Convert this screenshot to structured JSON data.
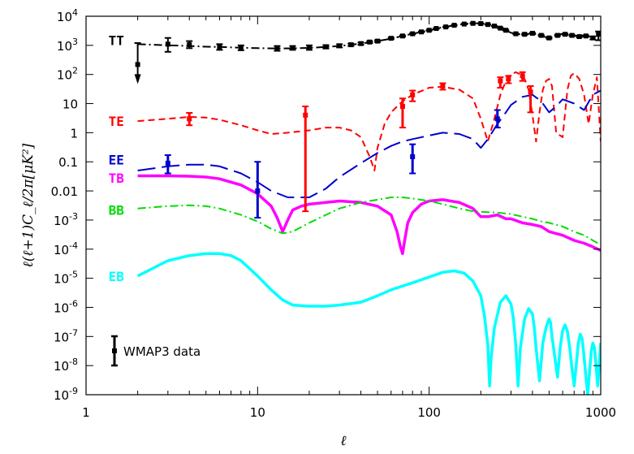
{
  "chart_data": {
    "type": "line",
    "title": "",
    "xlabel": "ℓ",
    "ylabel": "ℓ(ℓ+1)C_ℓ/2π[μK²]",
    "xscale": "log",
    "yscale": "log",
    "xlim": [
      1,
      1000
    ],
    "ylim": [
      1e-09,
      10000
    ],
    "grid": false,
    "x_ticks": [
      {
        "value": 1,
        "label": "1"
      },
      {
        "value": 10,
        "label": "10"
      },
      {
        "value": 100,
        "label": "100"
      },
      {
        "value": 1000,
        "label": "1000"
      }
    ],
    "y_ticks": [
      {
        "value": 10000,
        "base": "10",
        "exp": "4"
      },
      {
        "value": 1000,
        "base": "10",
        "exp": "3"
      },
      {
        "value": 100,
        "base": "10",
        "exp": "2"
      },
      {
        "value": 10,
        "base": "10",
        "exp": ""
      },
      {
        "value": 1,
        "base": "1",
        "exp": ""
      },
      {
        "value": 0.1,
        "base": "0.1",
        "exp": ""
      },
      {
        "value": 0.01,
        "base": "0.01",
        "exp": ""
      },
      {
        "value": 0.001,
        "base": "10",
        "exp": "-3"
      },
      {
        "value": 0.0001,
        "base": "10",
        "exp": "-4"
      },
      {
        "value": 1e-05,
        "base": "10",
        "exp": "-5"
      },
      {
        "value": 1e-06,
        "base": "10",
        "exp": "-6"
      },
      {
        "value": 1e-07,
        "base": "10",
        "exp": "-7"
      },
      {
        "value": 1e-08,
        "base": "10",
        "exp": "-8"
      },
      {
        "value": 1e-09,
        "base": "10",
        "exp": "-9"
      }
    ],
    "series": [
      {
        "name": "TT",
        "color": "#000000",
        "dash": "10,4,2,4",
        "width": 2,
        "label_pos": {
          "x": 1.5,
          "y": 1500
        },
        "x": [
          2,
          3,
          4,
          5,
          6,
          8,
          10,
          13,
          16,
          20,
          25,
          30,
          35,
          40,
          50,
          60,
          70,
          80,
          100,
          120,
          150,
          180,
          200,
          220,
          250,
          280,
          300,
          350,
          400,
          450,
          500,
          550,
          600,
          700,
          800,
          900,
          1000
        ],
        "y": [
          1100,
          1000,
          950,
          900,
          880,
          830,
          800,
          780,
          790,
          820,
          880,
          950,
          1050,
          1150,
          1400,
          1700,
          2100,
          2500,
          3300,
          4200,
          5200,
          5800,
          5700,
          5200,
          4300,
          3300,
          2700,
          2300,
          2600,
          2100,
          1800,
          2300,
          2500,
          2100,
          2200,
          1900,
          1600
        ]
      },
      {
        "name": "TE",
        "color": "#ff0000",
        "dash": "8,5",
        "width": 2,
        "label_pos": {
          "x": 1.5,
          "y": 2.5
        },
        "x": [
          2,
          3,
          4,
          5,
          6,
          8,
          10,
          12,
          15,
          20,
          25,
          30,
          35,
          40,
          45,
          48,
          50,
          55,
          60,
          70,
          80,
          100,
          120,
          150,
          180,
          200,
          220,
          240,
          260,
          280,
          300,
          320,
          340,
          360,
          380,
          400,
          420,
          440,
          460,
          480,
          500,
          520,
          550,
          600,
          640,
          670,
          700,
          750,
          800,
          850,
          900,
          950,
          1000
        ],
        "y": [
          2.5,
          3,
          3.5,
          3.3,
          2.8,
          1.8,
          1.2,
          0.9,
          1,
          1.2,
          1.5,
          1.5,
          1.2,
          0.7,
          0.15,
          0.05,
          0.3,
          2,
          5,
          12,
          20,
          35,
          38,
          30,
          15,
          3,
          0.5,
          3,
          20,
          60,
          100,
          120,
          100,
          70,
          30,
          4,
          0.5,
          5,
          30,
          60,
          70,
          40,
          1,
          0.7,
          30,
          90,
          110,
          70,
          20,
          2,
          20,
          80,
          0.5
        ]
      },
      {
        "name": "EE",
        "color": "#0000cc",
        "dash": "22,8",
        "width": 2,
        "label_pos": {
          "x": 1.5,
          "y": 0.12
        },
        "x": [
          2,
          3,
          4,
          5,
          6,
          8,
          10,
          12,
          15,
          20,
          25,
          30,
          40,
          50,
          60,
          70,
          80,
          100,
          120,
          150,
          180,
          200,
          220,
          250,
          280,
          300,
          350,
          400,
          450,
          500,
          550,
          600,
          700,
          800,
          900,
          1000
        ],
        "y": [
          0.05,
          0.07,
          0.08,
          0.08,
          0.07,
          0.04,
          0.02,
          0.01,
          0.006,
          0.006,
          0.012,
          0.03,
          0.09,
          0.2,
          0.35,
          0.5,
          0.6,
          0.8,
          1,
          0.9,
          0.6,
          0.3,
          0.6,
          2,
          5,
          9,
          17,
          20,
          12,
          5,
          8,
          14,
          10,
          6,
          20,
          28
        ]
      },
      {
        "name": "TB",
        "color": "#ff00ff",
        "dash": "",
        "width": 3.5,
        "label_pos": {
          "x": 1.5,
          "y": 0.028
        },
        "x": [
          2,
          3,
          4,
          5,
          6,
          8,
          10,
          12,
          13,
          14,
          15,
          16,
          18,
          20,
          25,
          30,
          40,
          50,
          60,
          65,
          68,
          70,
          72,
          75,
          80,
          90,
          100,
          120,
          150,
          180,
          200,
          220,
          250,
          280,
          300,
          350,
          400,
          450,
          500,
          600,
          700,
          800,
          900,
          1000
        ],
        "y": [
          0.033,
          0.033,
          0.032,
          0.03,
          0.026,
          0.016,
          0.008,
          0.003,
          0.0012,
          0.0004,
          0.001,
          0.0022,
          0.003,
          0.0035,
          0.004,
          0.0045,
          0.004,
          0.003,
          0.0015,
          0.0004,
          0.00012,
          7e-05,
          0.0002,
          0.0008,
          0.0018,
          0.0035,
          0.0045,
          0.005,
          0.004,
          0.0025,
          0.0013,
          0.0013,
          0.0015,
          0.0011,
          0.0011,
          0.0008,
          0.0007,
          0.0006,
          0.0004,
          0.0003,
          0.0002,
          0.00016,
          0.00012,
          9e-05
        ]
      },
      {
        "name": "BB",
        "color": "#00dd00",
        "dash": "10,4,2,4",
        "width": 2,
        "label_pos": {
          "x": 1.5,
          "y": 0.0022
        },
        "x": [
          2,
          3,
          4,
          5,
          6,
          8,
          10,
          12,
          14,
          16,
          20,
          25,
          30,
          40,
          50,
          60,
          70,
          80,
          100,
          120,
          150,
          180,
          200,
          250,
          300,
          350,
          400,
          450,
          500,
          600,
          700,
          800,
          900,
          1000
        ],
        "y": [
          0.0025,
          0.003,
          0.0032,
          0.003,
          0.0025,
          0.0015,
          0.0009,
          0.0005,
          0.00035,
          0.0004,
          0.0008,
          0.0015,
          0.0025,
          0.004,
          0.005,
          0.006,
          0.006,
          0.0055,
          0.0045,
          0.0035,
          0.0025,
          0.002,
          0.0019,
          0.0018,
          0.0016,
          0.0013,
          0.0011,
          0.0009,
          0.0008,
          0.0006,
          0.0004,
          0.0003,
          0.0002,
          0.00014
        ]
      },
      {
        "name": "EB",
        "color": "#00ffff",
        "dash": "",
        "width": 3.5,
        "label_pos": {
          "x": 1.5,
          "y": 1.2e-05
        },
        "x": [
          2,
          3,
          4,
          5,
          6,
          7,
          8,
          10,
          12,
          14,
          16,
          20,
          25,
          30,
          40,
          50,
          60,
          80,
          100,
          120,
          140,
          160,
          180,
          200,
          210,
          220,
          225,
          230,
          240,
          260,
          280,
          300,
          310,
          320,
          330,
          340,
          360,
          380,
          400,
          410,
          420,
          440,
          460,
          480,
          500,
          510,
          520,
          540,
          560,
          580,
          600,
          620,
          640,
          660,
          680,
          700,
          720,
          740,
          760,
          780,
          800,
          820,
          840,
          860,
          880,
          900,
          920,
          940,
          960,
          980,
          1000
        ],
        "y": [
          1.2e-05,
          4e-05,
          6e-05,
          7e-05,
          7e-05,
          6e-05,
          4e-05,
          1.2e-05,
          4e-06,
          1.8e-06,
          1.2e-06,
          1.1e-06,
          1.1e-06,
          1.2e-06,
          1.5e-06,
          2.5e-06,
          4e-06,
          7e-06,
          1.1e-05,
          1.6e-05,
          1.8e-05,
          1.5e-05,
          8e-06,
          2.5e-06,
          5e-07,
          5e-08,
          2e-09,
          2e-08,
          2e-07,
          1.5e-06,
          2.5e-06,
          1.3e-06,
          4e-07,
          5e-08,
          2e-09,
          4e-08,
          4e-07,
          9e-07,
          6e-07,
          2e-07,
          4e-08,
          3e-09,
          6e-08,
          2e-07,
          4e-07,
          3e-07,
          1e-07,
          2e-08,
          4e-09,
          4e-08,
          1.6e-07,
          2.5e-07,
          1.5e-07,
          4e-08,
          8e-09,
          2e-09,
          1e-08,
          6e-08,
          1.2e-07,
          8e-08,
          2e-08,
          4e-09,
          1e-09,
          6e-09,
          3e-08,
          6e-08,
          4e-08,
          1e-08,
          2e-09,
          1e-08,
          6e-08
        ]
      }
    ],
    "error_bars": [
      {
        "series": "TT",
        "color": "#000000",
        "points": [
          {
            "x": 2,
            "y": 220,
            "lo": 1e-09,
            "hi": 1200,
            "arrow": true
          },
          {
            "x": 3,
            "y": 1100,
            "lo": 600,
            "hi": 1800
          },
          {
            "x": 4,
            "y": 1050,
            "lo": 800,
            "hi": 1400
          },
          {
            "x": 6,
            "y": 900,
            "lo": 700,
            "hi": 1100
          },
          {
            "x": 8,
            "y": 830,
            "lo": 680,
            "hi": 1000
          },
          {
            "x": 13,
            "y": 800,
            "lo": 650,
            "hi": 950
          },
          {
            "x": 16,
            "y": 820,
            "lo": 700,
            "hi": 950
          },
          {
            "x": 20,
            "y": 850,
            "lo": 700,
            "hi": 1000
          },
          {
            "x": 25,
            "y": 900,
            "lo": 780,
            "hi": 1020
          },
          {
            "x": 30,
            "y": 970,
            "lo": 850,
            "hi": 1090
          },
          {
            "x": 35,
            "y": 1050,
            "lo": 950,
            "hi": 1150
          },
          {
            "x": 40,
            "y": 1150,
            "lo": 1050,
            "hi": 1260
          },
          {
            "x": 45,
            "y": 1300,
            "lo": 1200,
            "hi": 1400
          },
          {
            "x": 50,
            "y": 1400,
            "lo": 1300,
            "hi": 1500
          },
          {
            "x": 60,
            "y": 1750,
            "lo": 1650,
            "hi": 1850
          },
          {
            "x": 70,
            "y": 2100,
            "lo": 2000,
            "hi": 2200
          },
          {
            "x": 80,
            "y": 2500,
            "lo": 2400,
            "hi": 2600
          },
          {
            "x": 90,
            "y": 2900,
            "lo": 2800,
            "hi": 3000
          },
          {
            "x": 100,
            "y": 3300,
            "lo": 3200,
            "hi": 3400
          },
          {
            "x": 110,
            "y": 3800,
            "lo": 3700,
            "hi": 3900
          },
          {
            "x": 125,
            "y": 4300,
            "lo": 4200,
            "hi": 4400
          },
          {
            "x": 140,
            "y": 4900,
            "lo": 4800,
            "hi": 5000
          },
          {
            "x": 160,
            "y": 5400,
            "lo": 5300,
            "hi": 5500
          },
          {
            "x": 180,
            "y": 5700,
            "lo": 5600,
            "hi": 5800
          },
          {
            "x": 200,
            "y": 5600,
            "lo": 5500,
            "hi": 5700
          },
          {
            "x": 220,
            "y": 5200,
            "lo": 5100,
            "hi": 5300
          },
          {
            "x": 240,
            "y": 4600,
            "lo": 4500,
            "hi": 4700
          },
          {
            "x": 260,
            "y": 3900,
            "lo": 3800,
            "hi": 4000
          },
          {
            "x": 280,
            "y": 3300,
            "lo": 3200,
            "hi": 3400
          },
          {
            "x": 320,
            "y": 2500,
            "lo": 2400,
            "hi": 2600
          },
          {
            "x": 360,
            "y": 2400,
            "lo": 2300,
            "hi": 2500
          },
          {
            "x": 400,
            "y": 2600,
            "lo": 2500,
            "hi": 2700
          },
          {
            "x": 450,
            "y": 2200,
            "lo": 2100,
            "hi": 2300
          },
          {
            "x": 500,
            "y": 1800,
            "lo": 1700,
            "hi": 1900
          },
          {
            "x": 560,
            "y": 2200,
            "lo": 2100,
            "hi": 2300
          },
          {
            "x": 620,
            "y": 2400,
            "lo": 2300,
            "hi": 2500
          },
          {
            "x": 680,
            "y": 2200,
            "lo": 2100,
            "hi": 2300
          },
          {
            "x": 750,
            "y": 2000,
            "lo": 1900,
            "hi": 2100
          },
          {
            "x": 820,
            "y": 2100,
            "lo": 2000,
            "hi": 2200
          },
          {
            "x": 900,
            "y": 1800,
            "lo": 1600,
            "hi": 2000
          },
          {
            "x": 970,
            "y": 2400,
            "lo": 1500,
            "hi": 3000
          }
        ]
      },
      {
        "series": "TE",
        "color": "#ff0000",
        "points": [
          {
            "x": 4,
            "y": 3,
            "lo": 1.8,
            "hi": 4.8
          },
          {
            "x": 19,
            "y": 4,
            "lo": 0.002,
            "hi": 8
          },
          {
            "x": 70,
            "y": 8,
            "lo": 1.5,
            "hi": 15
          },
          {
            "x": 80,
            "y": 20,
            "lo": 12,
            "hi": 28
          },
          {
            "x": 120,
            "y": 40,
            "lo": 30,
            "hi": 50
          },
          {
            "x": 260,
            "y": 60,
            "lo": 35,
            "hi": 80
          },
          {
            "x": 290,
            "y": 70,
            "lo": 50,
            "hi": 90
          },
          {
            "x": 350,
            "y": 90,
            "lo": 60,
            "hi": 120
          },
          {
            "x": 390,
            "y": 25,
            "lo": 5,
            "hi": 40
          }
        ]
      },
      {
        "series": "EE",
        "color": "#0000cc",
        "points": [
          {
            "x": 3,
            "y": 0.09,
            "lo": 0.04,
            "hi": 0.17
          },
          {
            "x": 10,
            "y": 0.01,
            "lo": 0.0012,
            "hi": 0.1
          },
          {
            "x": 80,
            "y": 0.15,
            "lo": 0.04,
            "hi": 0.4
          },
          {
            "x": 250,
            "y": 3,
            "lo": 1.5,
            "hi": 6
          }
        ]
      }
    ],
    "legend": {
      "label": "WMAP3 data",
      "position": "bottom-left"
    }
  }
}
